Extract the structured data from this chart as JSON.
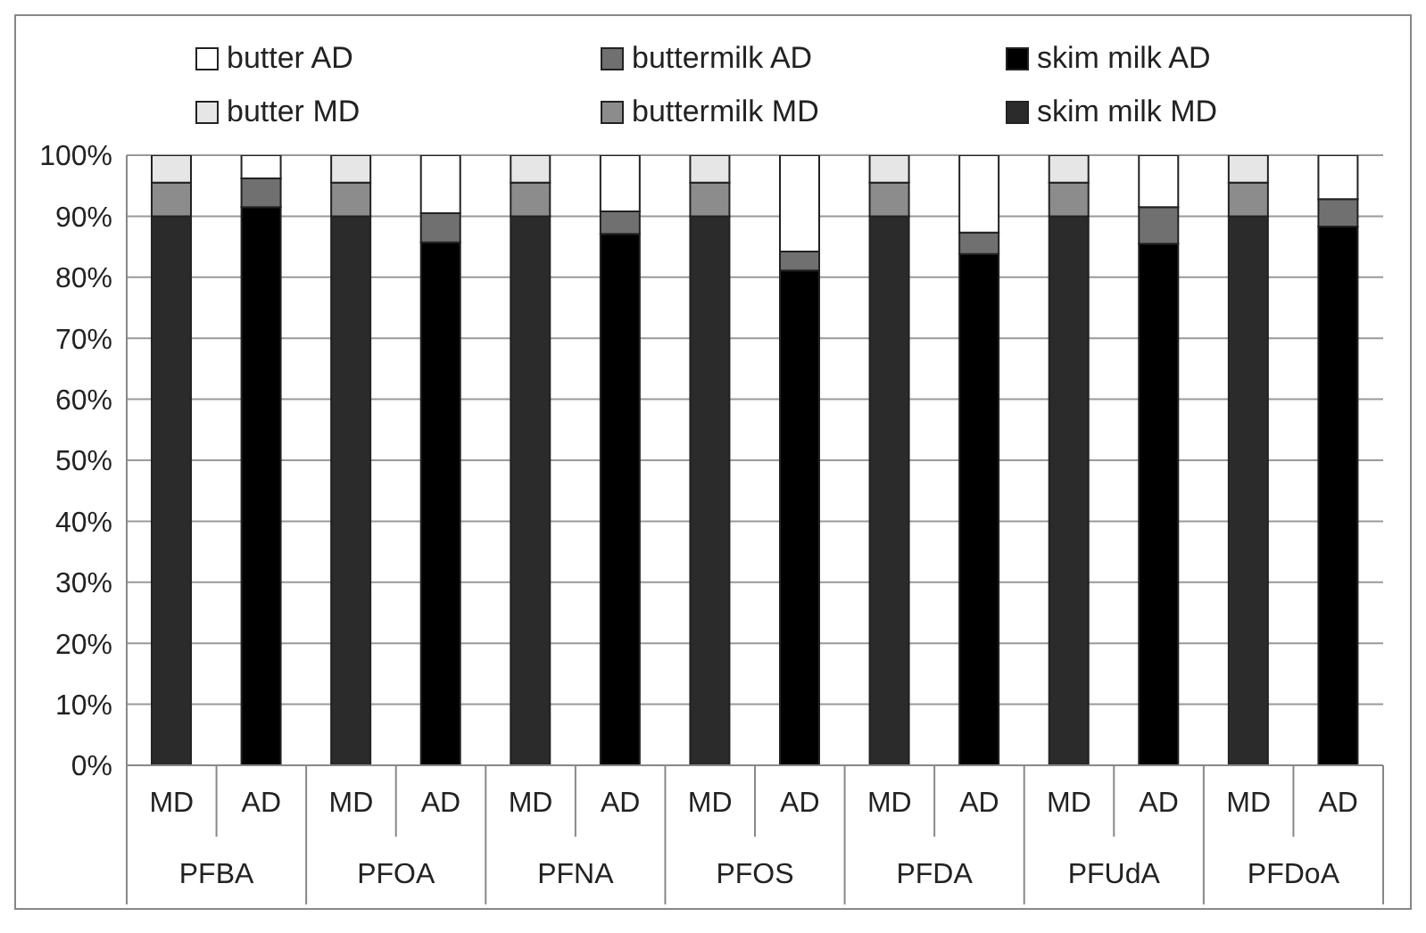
{
  "chart_data": {
    "type": "bar",
    "stacked": true,
    "categories": [
      "MD",
      "AD",
      "MD",
      "AD",
      "MD",
      "AD",
      "MD",
      "AD",
      "MD",
      "AD",
      "MD",
      "AD",
      "MD",
      "AD"
    ],
    "annotations": [
      "PFBA",
      "PFOA",
      "PFNA",
      "PFOS",
      "PFDA",
      "PFUdA",
      "PFDoA"
    ],
    "series": [
      {
        "name": "skim milk MD",
        "color": "#2b2b2b",
        "values": [
          90,
          null,
          90,
          null,
          90,
          null,
          90,
          null,
          90,
          null,
          90,
          null,
          90,
          null
        ]
      },
      {
        "name": "buttermilk MD",
        "color": "#8c8c8c",
        "values": [
          5.5,
          null,
          5.5,
          null,
          5.5,
          null,
          5.5,
          null,
          5.5,
          null,
          5.5,
          null,
          5.5,
          null
        ]
      },
      {
        "name": "butter MD",
        "color": "#e6e6e6",
        "values": [
          4.5,
          null,
          4.5,
          null,
          4.5,
          null,
          4.5,
          null,
          4.5,
          null,
          4.5,
          null,
          4.5,
          null
        ]
      },
      {
        "name": "skim milk AD",
        "color": "#000000",
        "values": [
          null,
          91.5,
          null,
          85.7,
          null,
          87.1,
          null,
          81.1,
          null,
          83.8,
          null,
          85.5,
          null,
          88.3
        ]
      },
      {
        "name": "buttermilk AD",
        "color": "#707070",
        "values": [
          null,
          4.7,
          null,
          4.8,
          null,
          3.7,
          null,
          3.1,
          null,
          3.5,
          null,
          6,
          null,
          4.5
        ]
      },
      {
        "name": "butter AD",
        "color": "#ffffff",
        "values": [
          null,
          3.8,
          null,
          9.5,
          null,
          9.2,
          null,
          15.8,
          null,
          12.7,
          null,
          8.5,
          null,
          7.2
        ]
      }
    ],
    "ylim": [
      0,
      100
    ],
    "yticks": [
      {
        "value": 0,
        "label": "0%"
      },
      {
        "value": 10,
        "label": "10%"
      },
      {
        "value": 20,
        "label": "20%"
      },
      {
        "value": 30,
        "label": "30%"
      },
      {
        "value": 40,
        "label": "40%"
      },
      {
        "value": 50,
        "label": "50%"
      },
      {
        "value": 60,
        "label": "60%"
      },
      {
        "value": 70,
        "label": "70%"
      },
      {
        "value": 80,
        "label": "80%"
      },
      {
        "value": 90,
        "label": "90%"
      },
      {
        "value": 100,
        "label": "100%"
      }
    ],
    "grid": "y",
    "legend": "top"
  }
}
